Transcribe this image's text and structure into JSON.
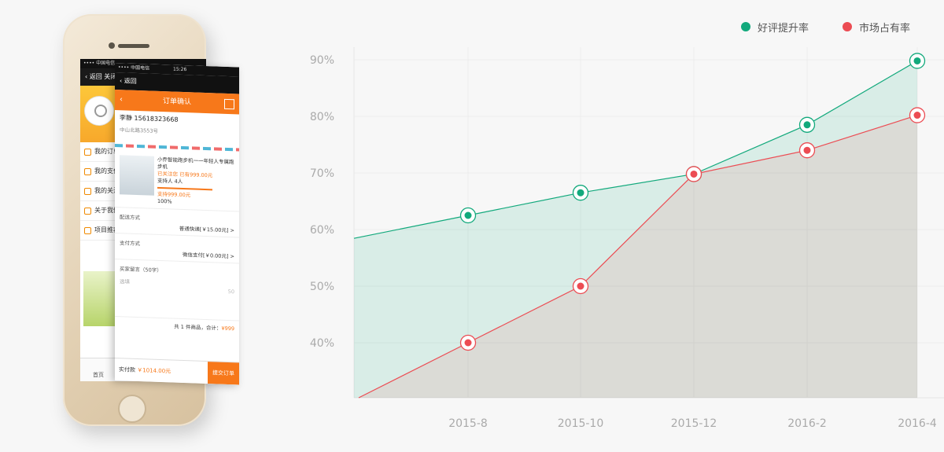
{
  "phone": {
    "back_screen": {
      "carrier": "•••• 中国电信",
      "nav_back": "‹ 返回",
      "nav_close": "关闭",
      "menu": [
        "我的订单",
        "我的支付",
        "我的关注",
        "关于我们",
        "项目推荐"
      ],
      "tab_home": "首页"
    },
    "front_screen": {
      "carrier": "•••• 中国电信",
      "time": "15:26",
      "nav_back": "‹ 返回",
      "title": "订单确认",
      "title_back": "‹",
      "contact": "李静 15618323668",
      "address": "中山北路3553号",
      "item_name": "小乔智能跑步机一一年轻人专属跑步机",
      "item_note": "已关注您 已有999.00元",
      "item_buyers": "支持人 4人",
      "item_progress": "100%",
      "item_paid": "支持999.00元",
      "delivery_label": "配送方式",
      "delivery_value": "普通快递[￥15.00元] >",
      "payment_label": "支付方式",
      "payment_value": "微信支付[￥0.00元] >",
      "note_label": "买家留言（50字）",
      "note_placeholder": "选填",
      "note_count": "50",
      "total_text": "共 1 件商品，合计：",
      "total_price": "¥999",
      "pay_label": "实付款",
      "pay_value": "￥1014.00元",
      "submit": "提交订单"
    }
  },
  "legend": [
    {
      "label": "好评提升率",
      "color": "#12a97c"
    },
    {
      "label": "市场占有率",
      "color": "#ec4c53"
    }
  ],
  "chart_data": {
    "type": "area",
    "categories": [
      "2015-8",
      "2015-10",
      "2015-12",
      "2016-2",
      "2016-4"
    ],
    "series": [
      {
        "name": "好评提升率",
        "color": "#12a97c",
        "values": [
          62.5,
          66.5,
          69.8,
          78.5,
          89.8
        ]
      },
      {
        "name": "市场占有率",
        "color": "#ec4c53",
        "values": [
          40,
          50,
          69.8,
          74,
          80.2
        ]
      }
    ],
    "y_ticks": [
      "40%",
      "50%",
      "60%",
      "70%",
      "80%",
      "90%"
    ],
    "y_tick_values": [
      40,
      50,
      60,
      70,
      80,
      90
    ],
    "ylim": [
      30,
      90
    ],
    "grid": true,
    "legend_position": "top-right"
  }
}
